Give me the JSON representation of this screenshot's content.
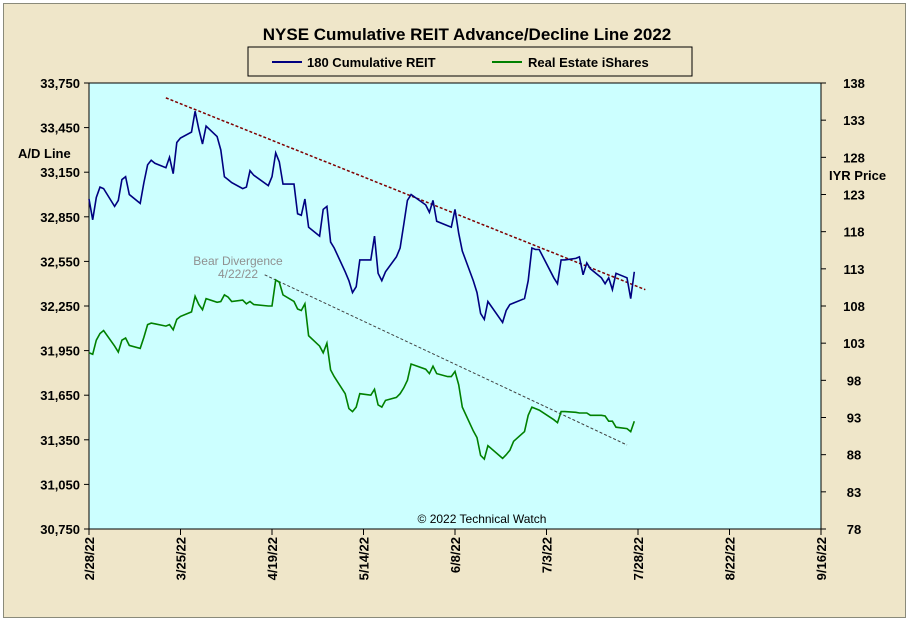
{
  "chart_data": {
    "type": "line",
    "title": "NYSE Cumulative  REIT Advance/Decline  Line 2022",
    "y_left_label": "A/D Line",
    "y_right_label": "IYR Price",
    "copyright": "© 2022 Technical  Watch",
    "annotation": {
      "text_line1": "Bear Divergence",
      "text_line2": "4/22/22"
    },
    "x_tick_labels": [
      "2/28/22",
      "3/25/22",
      "4/19/22",
      "5/14/22",
      "6/8/22",
      "7/3/22",
      "7/28/22",
      "8/22/22",
      "9/16/22"
    ],
    "y_left": {
      "min": 30750,
      "max": 33750,
      "ticks": [
        "30,750",
        "31,050",
        "31,350",
        "31,650",
        "31,950",
        "32,250",
        "32,550",
        "32,850",
        "33,150",
        "33,450",
        "33,750"
      ]
    },
    "y_right": {
      "min": 78,
      "max": 138,
      "ticks": [
        "78",
        "83",
        "88",
        "93",
        "98",
        "103",
        "108",
        "113",
        "118",
        "123",
        "128",
        "133",
        "138"
      ]
    },
    "colors": {
      "plot_bg": "#ccffff",
      "panel_bg": "#efe6c9",
      "reit_line": "#000080",
      "iyr_line": "#008000",
      "trend_reit": "#800000",
      "trend_iyr": "#404040"
    },
    "series": [
      {
        "name": "180 Cumulative REIT",
        "axis": "left",
        "points": [
          [
            "2022-02-28",
            32970
          ],
          [
            "2022-03-01",
            32830
          ],
          [
            "2022-03-02",
            32980
          ],
          [
            "2022-03-03",
            33050
          ],
          [
            "2022-03-04",
            33040
          ],
          [
            "2022-03-07",
            32920
          ],
          [
            "2022-03-08",
            32960
          ],
          [
            "2022-03-09",
            33100
          ],
          [
            "2022-03-10",
            33120
          ],
          [
            "2022-03-11",
            33000
          ],
          [
            "2022-03-14",
            32940
          ],
          [
            "2022-03-15",
            33080
          ],
          [
            "2022-03-16",
            33200
          ],
          [
            "2022-03-17",
            33230
          ],
          [
            "2022-03-18",
            33210
          ],
          [
            "2022-03-21",
            33180
          ],
          [
            "2022-03-22",
            33250
          ],
          [
            "2022-03-23",
            33140
          ],
          [
            "2022-03-24",
            33350
          ],
          [
            "2022-03-25",
            33380
          ],
          [
            "2022-03-28",
            33420
          ],
          [
            "2022-03-29",
            33560
          ],
          [
            "2022-03-30",
            33440
          ],
          [
            "2022-03-31",
            33340
          ],
          [
            "2022-04-01",
            33460
          ],
          [
            "2022-04-04",
            33390
          ],
          [
            "2022-04-05",
            33300
          ],
          [
            "2022-04-06",
            33120
          ],
          [
            "2022-04-07",
            33100
          ],
          [
            "2022-04-08",
            33080
          ],
          [
            "2022-04-11",
            33040
          ],
          [
            "2022-04-12",
            33050
          ],
          [
            "2022-04-13",
            33160
          ],
          [
            "2022-04-14",
            33130
          ],
          [
            "2022-04-18",
            33060
          ],
          [
            "2022-04-19",
            33120
          ],
          [
            "2022-04-20",
            33280
          ],
          [
            "2022-04-21",
            33220
          ],
          [
            "2022-04-22",
            33070
          ],
          [
            "2022-04-25",
            33070
          ],
          [
            "2022-04-26",
            32870
          ],
          [
            "2022-04-27",
            32860
          ],
          [
            "2022-04-28",
            32970
          ],
          [
            "2022-04-29",
            32780
          ],
          [
            "2022-05-02",
            32720
          ],
          [
            "2022-05-03",
            32900
          ],
          [
            "2022-05-04",
            32920
          ],
          [
            "2022-05-05",
            32680
          ],
          [
            "2022-05-06",
            32640
          ],
          [
            "2022-05-09",
            32480
          ],
          [
            "2022-05-10",
            32420
          ],
          [
            "2022-05-11",
            32340
          ],
          [
            "2022-05-12",
            32380
          ],
          [
            "2022-05-13",
            32560
          ],
          [
            "2022-05-16",
            32560
          ],
          [
            "2022-05-17",
            32720
          ],
          [
            "2022-05-18",
            32470
          ],
          [
            "2022-05-19",
            32420
          ],
          [
            "2022-05-20",
            32480
          ],
          [
            "2022-05-23",
            32580
          ],
          [
            "2022-05-24",
            32640
          ],
          [
            "2022-05-25",
            32800
          ],
          [
            "2022-05-26",
            32960
          ],
          [
            "2022-05-27",
            33000
          ],
          [
            "2022-05-31",
            32930
          ],
          [
            "2022-06-01",
            32880
          ],
          [
            "2022-06-02",
            32960
          ],
          [
            "2022-06-03",
            32820
          ],
          [
            "2022-06-06",
            32790
          ],
          [
            "2022-06-07",
            32780
          ],
          [
            "2022-06-08",
            32900
          ],
          [
            "2022-06-09",
            32740
          ],
          [
            "2022-06-10",
            32620
          ],
          [
            "2022-06-13",
            32420
          ],
          [
            "2022-06-14",
            32340
          ],
          [
            "2022-06-15",
            32200
          ],
          [
            "2022-06-16",
            32160
          ],
          [
            "2022-06-17",
            32280
          ],
          [
            "2022-06-21",
            32140
          ],
          [
            "2022-06-22",
            32220
          ],
          [
            "2022-06-23",
            32260
          ],
          [
            "2022-06-24",
            32270
          ],
          [
            "2022-06-27",
            32300
          ],
          [
            "2022-06-28",
            32420
          ],
          [
            "2022-06-29",
            32640
          ],
          [
            "2022-06-30",
            32630
          ],
          [
            "2022-07-01",
            32630
          ],
          [
            "2022-07-05",
            32440
          ],
          [
            "2022-07-06",
            32400
          ],
          [
            "2022-07-07",
            32560
          ],
          [
            "2022-07-08",
            32560
          ],
          [
            "2022-07-11",
            32570
          ],
          [
            "2022-07-12",
            32580
          ],
          [
            "2022-07-13",
            32460
          ],
          [
            "2022-07-14",
            32540
          ],
          [
            "2022-07-15",
            32500
          ],
          [
            "2022-07-18",
            32440
          ],
          [
            "2022-07-19",
            32400
          ],
          [
            "2022-07-20",
            32440
          ],
          [
            "2022-07-21",
            32360
          ],
          [
            "2022-07-22",
            32470
          ],
          [
            "2022-07-25",
            32440
          ],
          [
            "2022-07-26",
            32300
          ],
          [
            "2022-07-27",
            32480
          ]
        ]
      },
      {
        "name": "Real Estate iShares",
        "axis": "right",
        "points": [
          [
            "2022-02-28",
            101.7
          ],
          [
            "2022-03-01",
            101.5
          ],
          [
            "2022-03-02",
            103.4
          ],
          [
            "2022-03-03",
            104.3
          ],
          [
            "2022-03-04",
            104.7
          ],
          [
            "2022-03-07",
            102.6
          ],
          [
            "2022-03-08",
            101.8
          ],
          [
            "2022-03-09",
            103.4
          ],
          [
            "2022-03-10",
            103.7
          ],
          [
            "2022-03-11",
            102.7
          ],
          [
            "2022-03-14",
            102.3
          ],
          [
            "2022-03-15",
            103.8
          ],
          [
            "2022-03-16",
            105.5
          ],
          [
            "2022-03-17",
            105.7
          ],
          [
            "2022-03-18",
            105.6
          ],
          [
            "2022-03-21",
            105.3
          ],
          [
            "2022-03-22",
            105.5
          ],
          [
            "2022-03-23",
            104.8
          ],
          [
            "2022-03-24",
            106.2
          ],
          [
            "2022-03-25",
            106.6
          ],
          [
            "2022-03-28",
            107.2
          ],
          [
            "2022-03-29",
            109.3
          ],
          [
            "2022-03-30",
            108.2
          ],
          [
            "2022-03-31",
            107.5
          ],
          [
            "2022-04-01",
            109.0
          ],
          [
            "2022-04-04",
            108.5
          ],
          [
            "2022-04-05",
            108.6
          ],
          [
            "2022-04-06",
            109.5
          ],
          [
            "2022-04-07",
            109.2
          ],
          [
            "2022-04-08",
            108.6
          ],
          [
            "2022-04-11",
            108.8
          ],
          [
            "2022-04-12",
            108.3
          ],
          [
            "2022-04-13",
            108.6
          ],
          [
            "2022-04-14",
            108.2
          ],
          [
            "2022-04-18",
            108.0
          ],
          [
            "2022-04-19",
            108.0
          ],
          [
            "2022-04-20",
            111.5
          ],
          [
            "2022-04-21",
            111.2
          ],
          [
            "2022-04-22",
            109.5
          ],
          [
            "2022-04-25",
            108.6
          ],
          [
            "2022-04-26",
            107.6
          ],
          [
            "2022-04-27",
            107.4
          ],
          [
            "2022-04-28",
            108.3
          ],
          [
            "2022-04-29",
            104.0
          ],
          [
            "2022-05-02",
            102.6
          ],
          [
            "2022-05-03",
            101.7
          ],
          [
            "2022-05-04",
            103.0
          ],
          [
            "2022-05-05",
            99.4
          ],
          [
            "2022-05-06",
            98.5
          ],
          [
            "2022-05-09",
            96.2
          ],
          [
            "2022-05-10",
            94.2
          ],
          [
            "2022-05-11",
            93.8
          ],
          [
            "2022-05-12",
            94.4
          ],
          [
            "2022-05-13",
            96.2
          ],
          [
            "2022-05-16",
            96.0
          ],
          [
            "2022-05-17",
            96.8
          ],
          [
            "2022-05-18",
            94.7
          ],
          [
            "2022-05-19",
            94.4
          ],
          [
            "2022-05-20",
            95.3
          ],
          [
            "2022-05-23",
            95.7
          ],
          [
            "2022-05-24",
            96.2
          ],
          [
            "2022-05-25",
            97.0
          ],
          [
            "2022-05-26",
            98.0
          ],
          [
            "2022-05-27",
            100.2
          ],
          [
            "2022-05-31",
            99.5
          ],
          [
            "2022-06-01",
            98.9
          ],
          [
            "2022-06-02",
            99.9
          ],
          [
            "2022-06-03",
            98.9
          ],
          [
            "2022-06-06",
            98.5
          ],
          [
            "2022-06-07",
            98.5
          ],
          [
            "2022-06-08",
            99.2
          ],
          [
            "2022-06-09",
            97.4
          ],
          [
            "2022-06-10",
            94.4
          ],
          [
            "2022-06-13",
            91.2
          ],
          [
            "2022-06-14",
            90.3
          ],
          [
            "2022-06-15",
            87.9
          ],
          [
            "2022-06-16",
            87.4
          ],
          [
            "2022-06-17",
            89.2
          ],
          [
            "2022-06-21",
            87.5
          ],
          [
            "2022-06-22",
            88.0
          ],
          [
            "2022-06-23",
            88.6
          ],
          [
            "2022-06-24",
            89.8
          ],
          [
            "2022-06-27",
            91.1
          ],
          [
            "2022-06-28",
            93.3
          ],
          [
            "2022-06-29",
            94.4
          ],
          [
            "2022-06-30",
            94.2
          ],
          [
            "2022-07-01",
            94.0
          ],
          [
            "2022-07-05",
            92.7
          ],
          [
            "2022-07-06",
            92.3
          ],
          [
            "2022-07-07",
            93.8
          ],
          [
            "2022-07-08",
            93.8
          ],
          [
            "2022-07-11",
            93.7
          ],
          [
            "2022-07-12",
            93.6
          ],
          [
            "2022-07-13",
            93.6
          ],
          [
            "2022-07-14",
            93.6
          ],
          [
            "2022-07-15",
            93.3
          ],
          [
            "2022-07-18",
            93.3
          ],
          [
            "2022-07-19",
            93.2
          ],
          [
            "2022-07-20",
            92.5
          ],
          [
            "2022-07-21",
            92.5
          ],
          [
            "2022-07-22",
            91.7
          ],
          [
            "2022-07-25",
            91.5
          ],
          [
            "2022-07-26",
            91.1
          ],
          [
            "2022-07-27",
            92.5
          ]
        ]
      }
    ],
    "trendlines": [
      {
        "axis": "left",
        "style": "dashed",
        "from": [
          "2022-03-21",
          33650
        ],
        "to": [
          "2022-07-30",
          32360
        ]
      },
      {
        "axis": "right",
        "style": "dashed",
        "from": [
          "2022-04-17",
          112.2
        ],
        "to": [
          "2022-07-25",
          89.3
        ]
      }
    ]
  }
}
